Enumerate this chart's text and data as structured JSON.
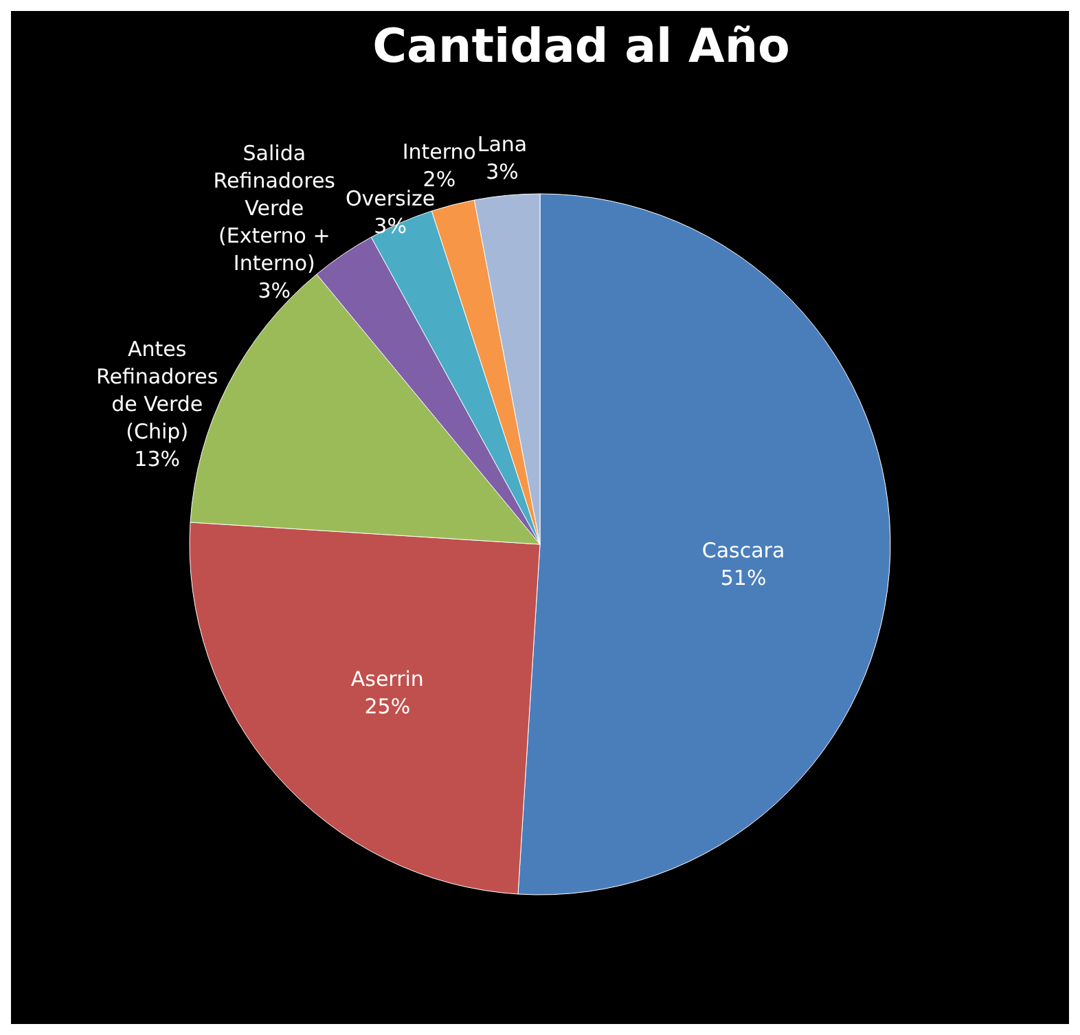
{
  "chart_data": {
    "type": "pie",
    "title": "Cantidad al Año",
    "categories": [
      "Cascara",
      "Aserrin",
      "Antes Refinadores de Verde (Chip)",
      "Salida Refinadores Verde (Externo + Interno)",
      "Oversize",
      "Interno",
      "Lana"
    ],
    "values": [
      51,
      25,
      13,
      3,
      3,
      2,
      3
    ],
    "value_labels": [
      "51%",
      "25%",
      "13%",
      "3%",
      "3%",
      "2%",
      "3%"
    ],
    "colors": [
      "#4a7ebb",
      "#c0504d",
      "#9bbb59",
      "#7f60a8",
      "#4bacc6",
      "#f79646",
      "#a5b8d8"
    ],
    "legend": false
  }
}
